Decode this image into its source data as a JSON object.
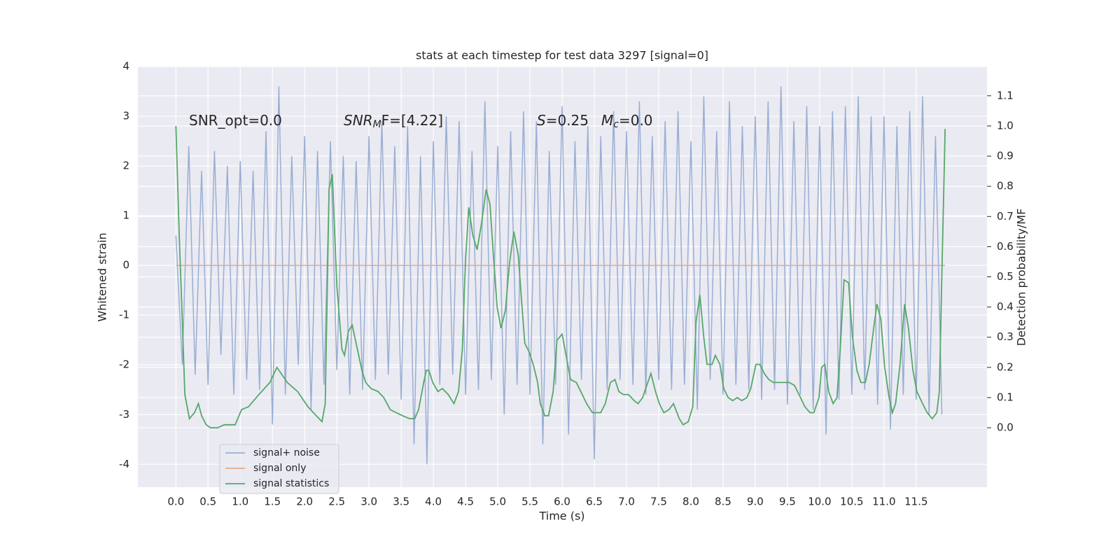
{
  "chart_data": {
    "type": "line",
    "title": "stats at each timestep for test data 3297 [signal=0]",
    "xlabel": "Time (s)",
    "ylabel": "Whitened strain",
    "y2label": "Detection probability/MF",
    "background": "#eaeaf2",
    "grid": true,
    "legend": "lower left",
    "xlim": [
      -0.59,
      12.6
    ],
    "ylim": [
      -4.46,
      4.0
    ],
    "y2lim": [
      -0.197,
      1.197
    ],
    "xticks": [
      {
        "value": 0,
        "label": "0.0"
      },
      0.5,
      {
        "value": 1,
        "label": "1.0"
      },
      1.5,
      {
        "value": 2,
        "label": "2.0"
      },
      2.5,
      {
        "value": 3,
        "label": "3.0"
      },
      3.5,
      {
        "value": 4,
        "label": "4.0"
      },
      4.5,
      {
        "value": 5,
        "label": "5.0"
      },
      5.5,
      {
        "value": 6,
        "label": "6.0"
      },
      6.5,
      {
        "value": 7,
        "label": "7.0"
      },
      7.5,
      {
        "value": 8,
        "label": "8.0"
      },
      8.5,
      {
        "value": 9,
        "label": "9.0"
      },
      9.5,
      {
        "value": 10,
        "label": "10.0"
      },
      10.5,
      {
        "value": 11,
        "label": "11.0"
      },
      11.5
    ],
    "yticks": [
      -4,
      -3,
      -2,
      -1,
      0,
      1,
      2,
      3,
      4
    ],
    "y2ticks": [
      {
        "value": 0,
        "label": "0.0"
      },
      0.1,
      0.2,
      0.3,
      0.4,
      0.5,
      0.6,
      0.7,
      0.8,
      0.9,
      {
        "value": 1,
        "label": "1.0"
      },
      1.1
    ],
    "annotations": [
      {
        "text": "SNR_opt=0.0"
      },
      {
        "text": "SNR",
        "sub": "M",
        "after": "F=[4.22]"
      },
      {
        "text": "S",
        "after": "=0.25"
      },
      {
        "text": "M",
        "sub": "c",
        "after": "=0.0"
      }
    ],
    "series": [
      {
        "name": "signal+ noise",
        "color": "#9aaed3",
        "x": [
          0,
          0.1,
          0.2,
          0.3,
          0.4,
          0.5,
          0.6,
          0.7,
          0.8,
          0.9,
          1,
          1.1,
          1.2,
          1.3,
          1.4,
          1.5,
          1.6,
          1.7,
          1.8,
          1.9,
          2,
          2.1,
          2.2,
          2.3,
          2.4,
          2.5,
          2.6,
          2.7,
          2.8,
          2.9,
          3,
          3.1,
          3.2,
          3.3,
          3.4,
          3.5,
          3.6,
          3.7,
          3.8,
          3.9,
          4,
          4.1,
          4.2,
          4.3,
          4.4,
          4.5,
          4.6,
          4.7,
          4.8,
          4.9,
          5,
          5.1,
          5.2,
          5.3,
          5.4,
          5.5,
          5.6,
          5.7,
          5.8,
          5.9,
          6,
          6.1,
          6.2,
          6.3,
          6.4,
          6.5,
          6.6,
          6.7,
          6.8,
          6.9,
          7,
          7.1,
          7.2,
          7.3,
          7.4,
          7.5,
          7.6,
          7.7,
          7.8,
          7.9,
          8,
          8.1,
          8.2,
          8.3,
          8.4,
          8.5,
          8.6,
          8.7,
          8.8,
          8.9,
          9,
          9.1,
          9.2,
          9.3,
          9.4,
          9.5,
          9.6,
          9.7,
          9.8,
          9.9,
          10,
          10.1,
          10.2,
          10.3,
          10.4,
          10.5,
          10.6,
          10.7,
          10.8,
          10.9,
          11,
          11.1,
          11.2,
          11.3,
          11.4,
          11.5,
          11.6,
          11.7,
          11.8,
          11.9
        ],
        "values": [
          0.6,
          -2.0,
          2.4,
          -2.2,
          1.9,
          -2.4,
          2.3,
          -1.8,
          2.0,
          -2.6,
          2.1,
          -2.3,
          1.9,
          -2.5,
          2.7,
          -3.2,
          3.6,
          -2.6,
          2.2,
          -2.0,
          2.6,
          -2.9,
          2.3,
          -2.4,
          2.5,
          -2.1,
          2.2,
          -2.6,
          2.1,
          -2.5,
          2.6,
          -2.3,
          2.9,
          -2.2,
          2.4,
          -2.7,
          2.8,
          -3.6,
          2.2,
          -4.0,
          2.5,
          -2.4,
          3.0,
          -2.2,
          2.9,
          -2.6,
          2.3,
          -2.5,
          3.3,
          -2.3,
          2.4,
          -3.0,
          2.7,
          -2.4,
          3.1,
          -2.6,
          2.9,
          -3.6,
          2.3,
          -2.4,
          3.2,
          -3.4,
          2.5,
          -2.3,
          2.8,
          -3.9,
          2.6,
          -2.5,
          3.1,
          -2.3,
          2.7,
          -2.4,
          3.3,
          -2.6,
          2.6,
          -2.3,
          2.9,
          -2.5,
          3.1,
          -2.4,
          2.5,
          -2.9,
          3.4,
          -2.3,
          2.7,
          -2.6,
          3.3,
          -2.4,
          2.8,
          -2.5,
          3.0,
          -2.7,
          3.3,
          -2.5,
          3.6,
          -2.8,
          2.9,
          -2.6,
          3.2,
          -2.9,
          2.8,
          -3.4,
          3.1,
          -2.7,
          3.2,
          -2.6,
          3.4,
          -2.5,
          3.0,
          -2.8,
          3.0,
          -3.3,
          2.8,
          -2.6,
          3.1,
          -2.7,
          3.4,
          -3.0,
          2.6,
          -3.0
        ]
      },
      {
        "name": "signal only",
        "color": "#e8a88a",
        "x": [
          0,
          11.95
        ],
        "values": [
          0,
          0
        ]
      },
      {
        "name": "signal statistics",
        "color": "#55a868",
        "axis": "y2",
        "x": [
          0,
          0.05,
          0.1,
          0.14,
          0.21,
          0.29,
          0.35,
          0.4,
          0.47,
          0.54,
          0.65,
          0.75,
          0.85,
          0.92,
          1.02,
          1.13,
          1.29,
          1.46,
          1.57,
          1.73,
          1.89,
          2.05,
          2.18,
          2.27,
          2.32,
          2.38,
          2.43,
          2.5,
          2.58,
          2.62,
          2.68,
          2.74,
          2.82,
          2.89,
          2.95,
          3.03,
          3.14,
          3.23,
          3.33,
          3.42,
          3.52,
          3.63,
          3.71,
          3.77,
          3.85,
          3.89,
          3.93,
          3.99,
          4.07,
          4.14,
          4.23,
          4.32,
          4.39,
          4.45,
          4.5,
          4.55,
          4.61,
          4.68,
          4.75,
          4.82,
          4.88,
          4.93,
          4.99,
          5.05,
          5.12,
          5.18,
          5.25,
          5.32,
          5.37,
          5.42,
          5.49,
          5.55,
          5.62,
          5.66,
          5.73,
          5.79,
          5.86,
          5.92,
          6.0,
          6.07,
          6.13,
          6.22,
          6.29,
          6.38,
          6.47,
          6.53,
          6.6,
          6.67,
          6.75,
          6.82,
          6.88,
          6.95,
          7.03,
          7.12,
          7.18,
          7.25,
          7.33,
          7.38,
          7.45,
          7.51,
          7.58,
          7.66,
          7.73,
          7.82,
          7.88,
          7.96,
          8.03,
          8.08,
          8.14,
          8.2,
          8.25,
          8.33,
          8.38,
          8.45,
          8.51,
          8.58,
          8.65,
          8.72,
          8.79,
          8.87,
          8.93,
          9.01,
          9.07,
          9.14,
          9.21,
          9.28,
          9.37,
          9.45,
          9.53,
          9.61,
          9.68,
          9.77,
          9.85,
          9.91,
          9.99,
          10.03,
          10.08,
          10.14,
          10.21,
          10.27,
          10.32,
          10.38,
          10.45,
          10.51,
          10.58,
          10.64,
          10.71,
          10.77,
          10.84,
          10.89,
          10.95,
          11.01,
          11.08,
          11.13,
          11.18,
          11.25,
          11.32,
          11.38,
          11.45,
          11.51,
          11.6,
          11.67,
          11.75,
          11.82,
          11.86,
          11.91,
          11.95
        ],
        "values": [
          1.0,
          0.65,
          0.35,
          0.11,
          0.03,
          0.05,
          0.08,
          0.04,
          0.01,
          0.0,
          0.0,
          0.01,
          0.01,
          0.01,
          0.06,
          0.07,
          0.11,
          0.15,
          0.2,
          0.15,
          0.12,
          0.07,
          0.04,
          0.02,
          0.08,
          0.79,
          0.84,
          0.47,
          0.26,
          0.24,
          0.32,
          0.34,
          0.26,
          0.19,
          0.15,
          0.13,
          0.12,
          0.1,
          0.06,
          0.05,
          0.04,
          0.03,
          0.03,
          0.06,
          0.15,
          0.19,
          0.19,
          0.15,
          0.12,
          0.13,
          0.11,
          0.08,
          0.12,
          0.26,
          0.56,
          0.73,
          0.64,
          0.59,
          0.68,
          0.79,
          0.74,
          0.58,
          0.4,
          0.33,
          0.39,
          0.54,
          0.65,
          0.57,
          0.42,
          0.28,
          0.25,
          0.21,
          0.15,
          0.08,
          0.04,
          0.04,
          0.12,
          0.29,
          0.31,
          0.23,
          0.16,
          0.15,
          0.12,
          0.08,
          0.05,
          0.05,
          0.05,
          0.08,
          0.15,
          0.16,
          0.12,
          0.11,
          0.11,
          0.09,
          0.08,
          0.1,
          0.15,
          0.18,
          0.12,
          0.08,
          0.05,
          0.06,
          0.08,
          0.03,
          0.01,
          0.02,
          0.07,
          0.35,
          0.44,
          0.3,
          0.21,
          0.21,
          0.24,
          0.21,
          0.13,
          0.1,
          0.09,
          0.1,
          0.09,
          0.1,
          0.13,
          0.21,
          0.21,
          0.18,
          0.16,
          0.15,
          0.15,
          0.15,
          0.15,
          0.14,
          0.11,
          0.07,
          0.05,
          0.05,
          0.1,
          0.2,
          0.21,
          0.12,
          0.08,
          0.1,
          0.26,
          0.49,
          0.48,
          0.3,
          0.19,
          0.15,
          0.15,
          0.21,
          0.33,
          0.41,
          0.36,
          0.2,
          0.1,
          0.05,
          0.08,
          0.21,
          0.41,
          0.33,
          0.19,
          0.12,
          0.08,
          0.05,
          0.03,
          0.05,
          0.12,
          0.61,
          0.99
        ]
      }
    ]
  }
}
